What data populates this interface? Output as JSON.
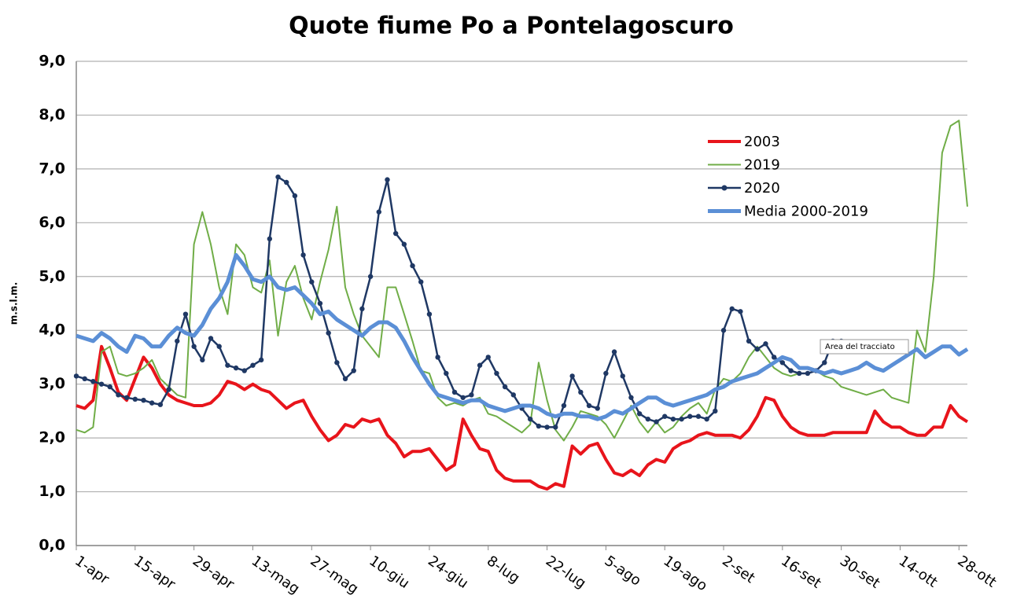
{
  "chart_data": {
    "type": "line",
    "title": "Quote fiume Po a Pontelagoscuro",
    "y_label": "m.s.l.m.",
    "annotation": "Area del tracciato",
    "categories": [
      "1-apr",
      null,
      null,
      null,
      null,
      null,
      null,
      "15-apr",
      null,
      null,
      null,
      null,
      null,
      null,
      "29-apr",
      null,
      null,
      null,
      null,
      null,
      null,
      "13-mag",
      null,
      null,
      null,
      null,
      null,
      null,
      "27-mag",
      null,
      null,
      null,
      null,
      null,
      null,
      "10-giu",
      null,
      null,
      null,
      null,
      null,
      null,
      "24-giu",
      null,
      null,
      null,
      null,
      null,
      null,
      "8-lug",
      null,
      null,
      null,
      null,
      null,
      null,
      "22-lug",
      null,
      null,
      null,
      null,
      null,
      null,
      "5-ago",
      null,
      null,
      null,
      null,
      null,
      null,
      "19-ago",
      null,
      null,
      null,
      null,
      null,
      null,
      "2-set",
      null,
      null,
      null,
      null,
      null,
      null,
      "16-set",
      null,
      null,
      null,
      null,
      null,
      null,
      "30-set",
      null,
      null,
      null,
      null,
      null,
      null,
      "14-ott",
      null,
      null,
      null,
      null,
      null,
      null,
      "28-ott",
      null
    ],
    "ylim": [
      0,
      9
    ],
    "yticks": [
      {
        "value": 0,
        "label": "0,0"
      },
      {
        "value": 1,
        "label": "1,0"
      },
      {
        "value": 2,
        "label": "2,0"
      },
      {
        "value": 3,
        "label": "3,0"
      },
      {
        "value": 4,
        "label": "4,0"
      },
      {
        "value": 5,
        "label": "5,0"
      },
      {
        "value": 6,
        "label": "6,0"
      },
      {
        "value": 7,
        "label": "7,0"
      },
      {
        "value": 8,
        "label": "8,0"
      },
      {
        "value": 9,
        "label": "9,0"
      }
    ],
    "grid": true,
    "legend": "upper right",
    "series": [
      {
        "name": "2003",
        "color": "#e8141b",
        "width": 4,
        "markers": false,
        "values": [
          2.6,
          2.55,
          2.7,
          3.7,
          3.3,
          2.85,
          2.7,
          3.1,
          3.5,
          3.3,
          3.0,
          2.8,
          2.7,
          2.65,
          2.6,
          2.6,
          2.65,
          2.8,
          3.05,
          3.0,
          2.9,
          3.0,
          2.9,
          2.85,
          2.7,
          2.55,
          2.65,
          2.7,
          2.4,
          2.15,
          1.95,
          2.05,
          2.25,
          2.2,
          2.35,
          2.3,
          2.35,
          2.05,
          1.9,
          1.65,
          1.75,
          1.75,
          1.8,
          1.6,
          1.4,
          1.5,
          2.35,
          2.05,
          1.8,
          1.75,
          1.4,
          1.25,
          1.2,
          1.2,
          1.2,
          1.1,
          1.05,
          1.15,
          1.1,
          1.85,
          1.7,
          1.85,
          1.9,
          1.6,
          1.35,
          1.3,
          1.4,
          1.3,
          1.5,
          1.6,
          1.55,
          1.8,
          1.9,
          1.95,
          2.05,
          2.1,
          2.05,
          2.05,
          2.05,
          2.0,
          2.15,
          2.4,
          2.75,
          2.7,
          2.4,
          2.2,
          2.1,
          2.05,
          2.05,
          2.05,
          2.1,
          2.1,
          2.1,
          2.1,
          2.1,
          2.5,
          2.3,
          2.2,
          2.2,
          2.1,
          2.05,
          2.05,
          2.2,
          2.2,
          2.6,
          2.4,
          2.3
        ]
      },
      {
        "name": "2019",
        "color": "#70ad47",
        "width": 2,
        "markers": false,
        "values": [
          2.15,
          2.1,
          2.2,
          3.6,
          3.7,
          3.2,
          3.15,
          3.2,
          3.3,
          3.45,
          3.1,
          2.95,
          2.8,
          2.75,
          5.6,
          6.2,
          5.6,
          4.8,
          4.3,
          5.6,
          5.4,
          4.8,
          4.7,
          5.3,
          3.9,
          4.9,
          5.2,
          4.6,
          4.2,
          4.9,
          5.5,
          6.3,
          4.8,
          4.3,
          3.9,
          3.7,
          3.5,
          4.8,
          4.8,
          4.3,
          3.8,
          3.25,
          3.2,
          2.75,
          2.6,
          2.65,
          2.6,
          2.7,
          2.75,
          2.45,
          2.4,
          2.3,
          2.2,
          2.1,
          2.25,
          3.4,
          2.7,
          2.15,
          1.95,
          2.2,
          2.5,
          2.45,
          2.4,
          2.25,
          2.0,
          2.3,
          2.6,
          2.3,
          2.1,
          2.3,
          2.1,
          2.2,
          2.4,
          2.55,
          2.65,
          2.45,
          2.9,
          3.1,
          3.05,
          3.2,
          3.5,
          3.7,
          3.5,
          3.3,
          3.2,
          3.15,
          3.2,
          3.2,
          3.25,
          3.15,
          3.1,
          2.95,
          2.9,
          2.85,
          2.8,
          2.85,
          2.9,
          2.75,
          2.7,
          2.65,
          4.0,
          3.6,
          5.0,
          7.3,
          7.8,
          7.9,
          6.3
        ]
      },
      {
        "name": "2020",
        "color": "#1f3864",
        "width": 2.5,
        "markers": true,
        "values": [
          3.15,
          3.1,
          3.05,
          3.0,
          2.95,
          2.8,
          2.75,
          2.72,
          2.7,
          2.65,
          2.62,
          2.9,
          3.8,
          4.3,
          3.7,
          3.45,
          3.85,
          3.7,
          3.35,
          3.3,
          3.25,
          3.35,
          3.45,
          5.7,
          6.85,
          6.75,
          6.5,
          5.4,
          4.9,
          4.5,
          3.95,
          3.4,
          3.1,
          3.25,
          4.4,
          5.0,
          6.2,
          6.8,
          5.8,
          5.6,
          5.2,
          4.9,
          4.3,
          3.5,
          3.2,
          2.85,
          2.75,
          2.8,
          3.35,
          3.5,
          3.2,
          2.95,
          2.8,
          2.55,
          2.35,
          2.22,
          2.2,
          2.2,
          2.6,
          3.15,
          2.85,
          2.6,
          2.55,
          3.2,
          3.6,
          3.15,
          2.75,
          2.45,
          2.35,
          2.3,
          2.4,
          2.35,
          2.35,
          2.4,
          2.4,
          2.35,
          2.5,
          4.0,
          4.4,
          4.35,
          3.8,
          3.65,
          3.75,
          3.5,
          3.4,
          3.25,
          3.2,
          3.2,
          3.25,
          3.4,
          3.8,
          3.8,
          null,
          null,
          null,
          null,
          null,
          null,
          null,
          null,
          null,
          null,
          null,
          null,
          null,
          null,
          null
        ]
      },
      {
        "name": "Media 2000-2019",
        "color": "#5b8fd6",
        "width": 5,
        "markers": false,
        "values": [
          3.9,
          3.85,
          3.8,
          3.95,
          3.85,
          3.7,
          3.6,
          3.9,
          3.85,
          3.7,
          3.7,
          3.9,
          4.05,
          3.95,
          3.9,
          4.1,
          4.4,
          4.6,
          4.9,
          5.4,
          5.2,
          4.95,
          4.9,
          5.0,
          4.8,
          4.75,
          4.8,
          4.65,
          4.5,
          4.3,
          4.35,
          4.2,
          4.1,
          4.0,
          3.9,
          4.05,
          4.15,
          4.15,
          4.05,
          3.8,
          3.5,
          3.25,
          3.0,
          2.8,
          2.75,
          2.7,
          2.65,
          2.7,
          2.7,
          2.6,
          2.55,
          2.5,
          2.55,
          2.6,
          2.6,
          2.55,
          2.45,
          2.4,
          2.45,
          2.45,
          2.4,
          2.4,
          2.35,
          2.4,
          2.5,
          2.45,
          2.55,
          2.65,
          2.75,
          2.75,
          2.65,
          2.6,
          2.65,
          2.7,
          2.75,
          2.8,
          2.9,
          2.95,
          3.05,
          3.1,
          3.15,
          3.2,
          3.3,
          3.4,
          3.5,
          3.45,
          3.3,
          3.3,
          3.25,
          3.2,
          3.25,
          3.2,
          3.25,
          3.3,
          3.4,
          3.3,
          3.25,
          3.35,
          3.45,
          3.55,
          3.65,
          3.5,
          3.6,
          3.7,
          3.7,
          3.55,
          3.65
        ]
      }
    ]
  }
}
